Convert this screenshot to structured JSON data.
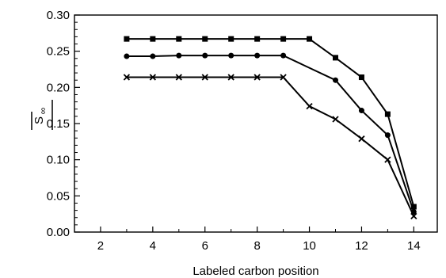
{
  "chart_data": {
    "type": "line",
    "title": "",
    "xlabel": "Labeled carbon position",
    "ylabel": "|S∞|",
    "ylabel_main": "S",
    "ylabel_sub": "∞",
    "xlim": [
      1,
      14.9
    ],
    "ylim": [
      0,
      0.3
    ],
    "xticks": [
      2,
      4,
      6,
      8,
      10,
      12,
      14
    ],
    "xtick_labels": [
      "2",
      "4",
      "6",
      "8",
      "10",
      "12",
      "14"
    ],
    "yticks": [
      0,
      0.05,
      0.1,
      0.15,
      0.2,
      0.25,
      0.3
    ],
    "ytick_labels": [
      "0.00",
      "0.05",
      "0.10",
      "0.15",
      "0.20",
      "0.25",
      "0.30"
    ],
    "grid": false,
    "legend": "none",
    "series": [
      {
        "marker": "square",
        "x": [
          3,
          4,
          5,
          6,
          7,
          8,
          9,
          10,
          11,
          12,
          13,
          14
        ],
        "values": [
          0.267,
          0.267,
          0.267,
          0.267,
          0.267,
          0.267,
          0.267,
          0.267,
          0.241,
          0.214,
          0.163,
          0.035
        ]
      },
      {
        "marker": "circle",
        "x": [
          3,
          4,
          5,
          6,
          7,
          8,
          9,
          10,
          11,
          12,
          13,
          14
        ],
        "values": [
          0.243,
          0.243,
          0.244,
          0.244,
          0.244,
          0.244,
          0.244,
          0.0,
          0.21,
          0.168,
          0.134,
          0.028
        ],
        "skip": [
          7
        ]
      },
      {
        "marker": "cross",
        "x": [
          3,
          4,
          5,
          6,
          7,
          8,
          9,
          10,
          11,
          12,
          13,
          14
        ],
        "values": [
          0.214,
          0.214,
          0.214,
          0.214,
          0.214,
          0.214,
          0.214,
          0.174,
          0.156,
          0.129,
          0.1,
          0.022
        ]
      }
    ]
  }
}
